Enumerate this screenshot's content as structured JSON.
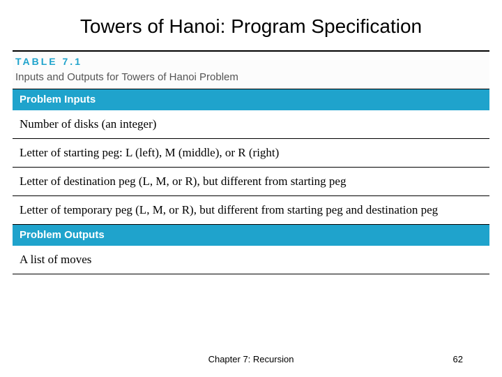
{
  "slide": {
    "title": "Towers of Hanoi: Program Specification",
    "footer_center": "Chapter 7: Recursion",
    "footer_page": "62"
  },
  "table": {
    "label": "TABLE 7.1",
    "caption": "Inputs and Outputs for Towers of Hanoi Problem",
    "label_color": "#1FA3CC",
    "header_bg": "#1FA3CC",
    "header_fg": "#ffffff",
    "row_bg": "#ffffff",
    "border_color": "#000000",
    "body_font": "Georgia, serif",
    "body_fontsize": 17,
    "sections": [
      {
        "header": "Problem Inputs",
        "rows": [
          "Number of disks (an integer)",
          "Letter of starting peg: L (left), M (middle), or R (right)",
          "Letter of destination peg (L, M, or R), but different from starting peg",
          "Letter of temporary peg (L, M, or R), but different from starting peg and destination peg"
        ]
      },
      {
        "header": "Problem Outputs",
        "rows": [
          "A list of moves"
        ]
      }
    ]
  }
}
